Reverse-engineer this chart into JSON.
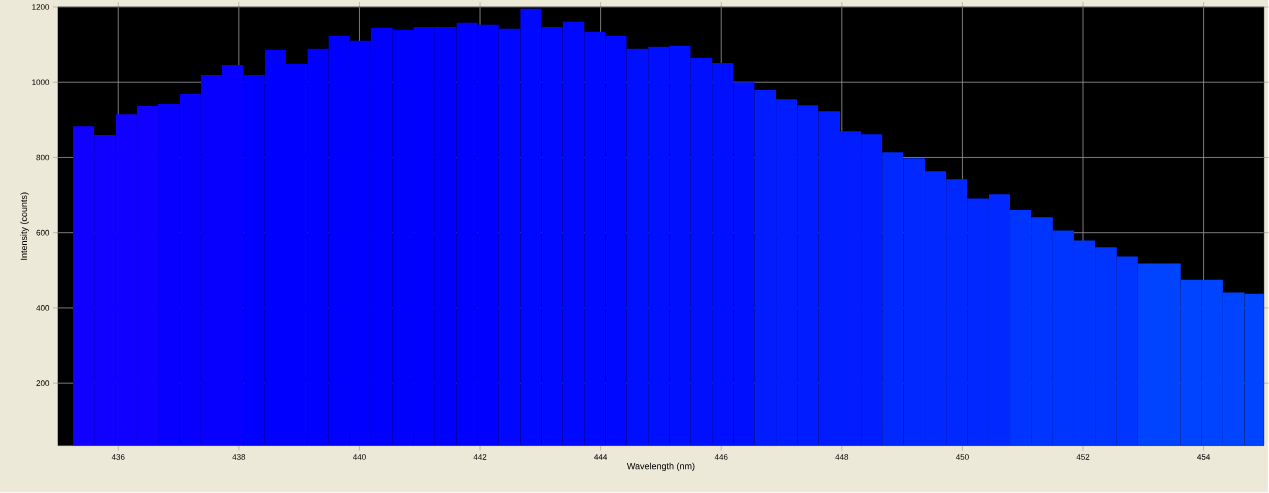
{
  "chart_data": {
    "type": "histogram",
    "xlabel": "Wavelength (nm)",
    "ylabel": "Intensity (counts)",
    "bins": [
      435.25,
      435.6,
      435.96,
      436.31,
      436.66,
      437.02,
      437.37,
      437.72,
      438.08,
      438.43,
      438.78,
      439.14,
      439.49,
      439.84,
      440.19,
      440.55,
      440.9,
      441.25,
      441.61,
      441.96,
      442.31,
      442.67,
      443.02,
      443.37,
      443.73,
      444.08,
      444.43,
      444.79,
      445.14,
      445.49,
      445.85,
      446.2,
      446.55,
      446.91,
      447.26,
      447.61,
      447.97,
      448.32,
      448.67,
      449.02,
      449.38,
      449.73,
      450.08,
      450.44,
      450.79,
      451.14,
      451.5,
      451.85,
      452.2,
      452.56,
      452.91,
      453.26,
      453.62,
      453.97,
      454.32,
      454.68,
      455.0
    ],
    "values": [
      883,
      860,
      915,
      937,
      942,
      969,
      1019,
      1046,
      1019,
      1086,
      1049,
      1089,
      1123,
      1110,
      1145,
      1139,
      1147,
      1147,
      1158,
      1153,
      1142,
      1195,
      1147,
      1161,
      1134,
      1123,
      1089,
      1094,
      1097,
      1065,
      1051,
      1000,
      979,
      955,
      939,
      923,
      870,
      862,
      814,
      798,
      763,
      742,
      691,
      702,
      660,
      641,
      606,
      579,
      561,
      537,
      518,
      518,
      475,
      475,
      441,
      438
    ],
    "colors": [
      "#1000ff",
      "#1000ff",
      "#1000ff",
      "#1000ff",
      "#0800ff",
      "#0800ff",
      "#0800ff",
      "#0800ff",
      "#0000ff",
      "#0000ff",
      "#0000ff",
      "#0000ff",
      "#0000ff",
      "#0000ff",
      "#0000ff",
      "#0000ff",
      "#0000ff",
      "#0000ff",
      "#0000ff",
      "#0000ff",
      "#0008ff",
      "#0008ff",
      "#0008ff",
      "#0008ff",
      "#0008ff",
      "#0008ff",
      "#0010ff",
      "#0010ff",
      "#0010ff",
      "#0010ff",
      "#0010ff",
      "#0010ff",
      "#001cff",
      "#001cff",
      "#001cff",
      "#001cff",
      "#001cff",
      "#001cff",
      "#0028ff",
      "#0028ff",
      "#0028ff",
      "#0028ff",
      "#0028ff",
      "#0028ff",
      "#0034ff",
      "#0034ff",
      "#0034ff",
      "#0034ff",
      "#0034ff",
      "#0034ff",
      "#0044ff",
      "#0044ff",
      "#0044ff",
      "#0044ff",
      "#0044ff",
      "#0044ff"
    ],
    "xlim": [
      435,
      455
    ],
    "ylim": [
      34,
      1200
    ],
    "xticks": [
      436,
      438,
      440,
      442,
      444,
      446,
      448,
      450,
      452,
      454
    ],
    "yticks": [
      200,
      400,
      600,
      800,
      1000,
      1200
    ],
    "grid": true
  }
}
